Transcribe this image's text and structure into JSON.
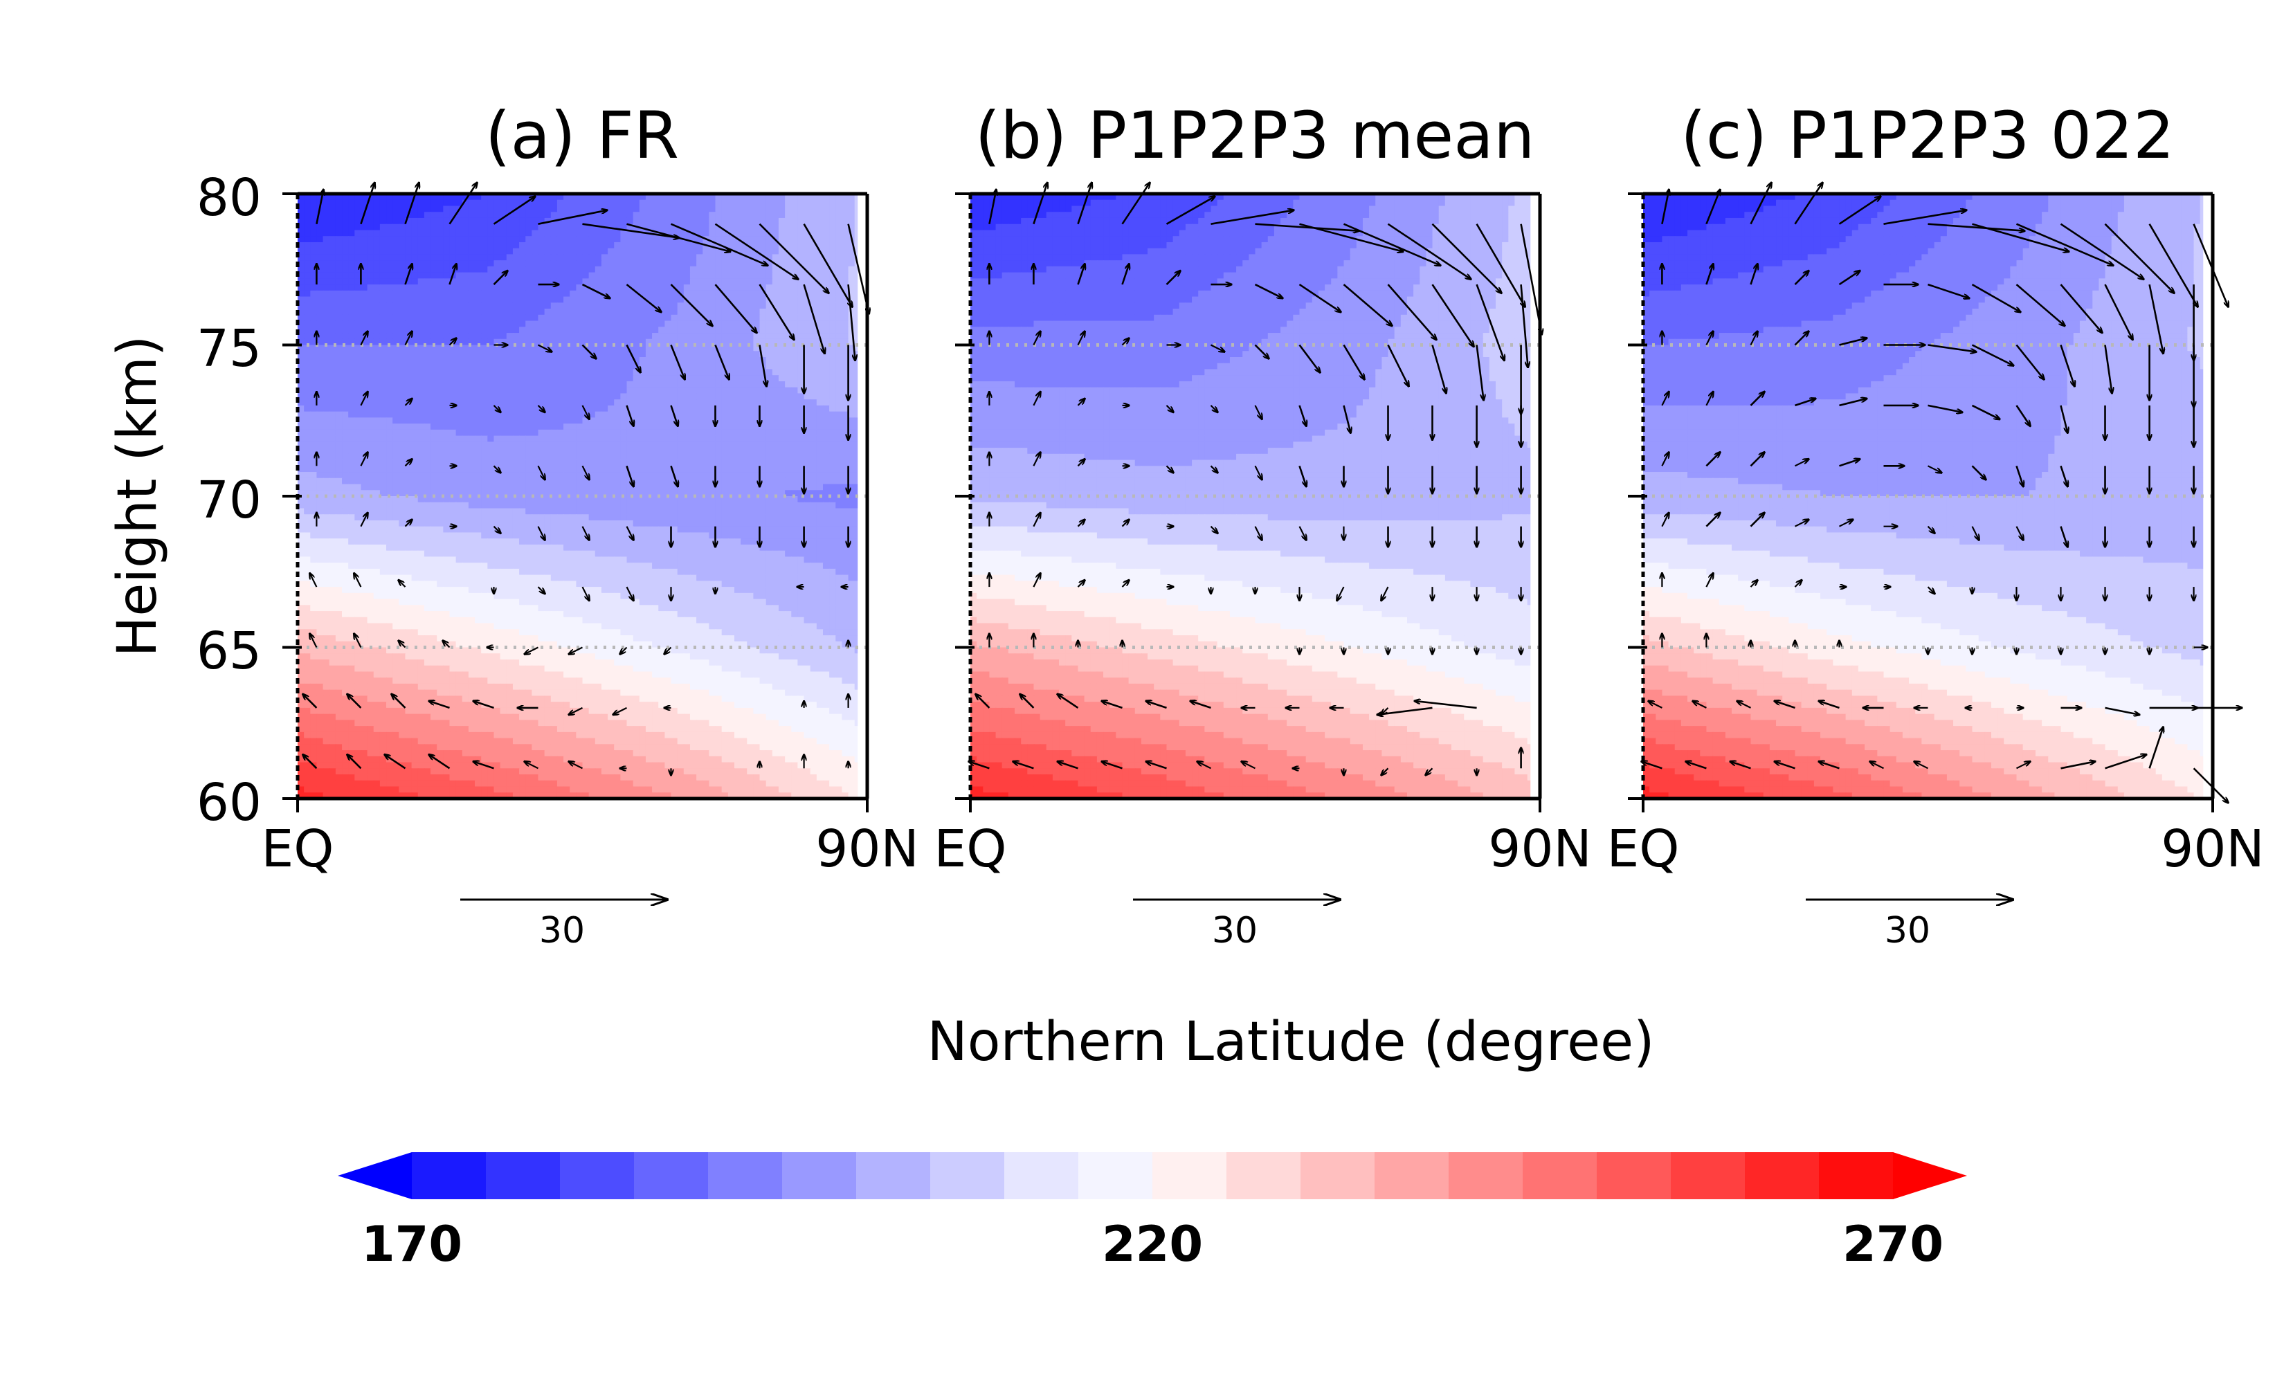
{
  "chart_data": [
    {
      "type": "heatmap",
      "title": "(a) FR",
      "x_ticks": [
        "EQ",
        "90N"
      ],
      "y_ticks": [
        "60",
        "65",
        "70",
        "75",
        "80"
      ],
      "ylabel": "Height (km)",
      "xlim": [
        0,
        90
      ],
      "ylim": [
        60,
        80
      ],
      "reference_vector": {
        "label": "30",
        "value": 30
      },
      "temperature_K": {
        "lat": [
          0,
          30,
          60,
          90
        ],
        "height": [
          60,
          65,
          70,
          75,
          80
        ],
        "values": [
          [
            262,
            252,
            240,
            224
          ],
          [
            234,
            224,
            214,
            204
          ],
          [
            202,
            198,
            196,
            194
          ],
          [
            190,
            190,
            196,
            206
          ],
          [
            175,
            180,
            192,
            206
          ]
        ]
      },
      "wind_vectors": {
        "lat": [
          3,
          10,
          17,
          24,
          31,
          38,
          45,
          52,
          59,
          66,
          73,
          80,
          87
        ],
        "height": [
          61,
          63,
          65,
          67,
          69,
          71,
          73,
          75,
          77,
          79
        ],
        "u": [
          [
            -2,
            -2,
            -3,
            -3,
            -3,
            -2,
            -2,
            -1,
            0,
            0,
            0,
            0,
            0
          ],
          [
            -2,
            -2,
            -2,
            -3,
            -3,
            -3,
            -2,
            -2,
            -1,
            0,
            0,
            0,
            0
          ],
          [
            -1,
            -1,
            -1,
            -1,
            -1,
            -2,
            -2,
            -1,
            -1,
            0,
            0,
            0,
            0
          ],
          [
            -1,
            -1,
            -1,
            0,
            0,
            1,
            1,
            1,
            0,
            0,
            0,
            -1,
            -1
          ],
          [
            0,
            1,
            1,
            1,
            1,
            1,
            1,
            1,
            0,
            0,
            0,
            0,
            0
          ],
          [
            0,
            1,
            1,
            1,
            1,
            1,
            1,
            1,
            1,
            0,
            0,
            0,
            0
          ],
          [
            0,
            1,
            1,
            1,
            1,
            1,
            1,
            1,
            1,
            0,
            0,
            0,
            0
          ],
          [
            0,
            1,
            1,
            1,
            2,
            2,
            2,
            2,
            2,
            2,
            1,
            0,
            0
          ],
          [
            0,
            0,
            1,
            1,
            2,
            3,
            4,
            5,
            6,
            6,
            5,
            3,
            1
          ],
          [
            1,
            2,
            2,
            4,
            6,
            10,
            14,
            15,
            14,
            12,
            10,
            7,
            3
          ]
        ],
        "w": [
          [
            2,
            2,
            2,
            2,
            1,
            1,
            1,
            0,
            -1,
            0,
            1,
            2,
            1
          ],
          [
            2,
            2,
            2,
            1,
            1,
            0,
            -1,
            -1,
            0,
            0,
            0,
            1,
            2
          ],
          [
            2,
            2,
            1,
            1,
            0,
            -1,
            -1,
            -1,
            -1,
            0,
            0,
            0,
            1
          ],
          [
            2,
            2,
            1,
            0,
            -1,
            -1,
            -2,
            -2,
            -2,
            -1,
            0,
            0,
            0
          ],
          [
            2,
            2,
            1,
            0,
            -1,
            -2,
            -2,
            -2,
            -3,
            -3,
            -3,
            -3,
            -3
          ],
          [
            2,
            2,
            1,
            0,
            -1,
            -2,
            -2,
            -3,
            -3,
            -3,
            -3,
            -4,
            -4
          ],
          [
            2,
            2,
            1,
            0,
            -1,
            -1,
            -2,
            -3,
            -3,
            -3,
            -3,
            -4,
            -5
          ],
          [
            2,
            2,
            2,
            1,
            0,
            -1,
            -2,
            -4,
            -5,
            -5,
            -6,
            -7,
            -8
          ],
          [
            3,
            3,
            3,
            3,
            2,
            0,
            -2,
            -4,
            -6,
            -7,
            -8,
            -10,
            -11
          ],
          [
            5,
            6,
            6,
            6,
            4,
            2,
            -2,
            -4,
            -6,
            -8,
            -10,
            -12,
            -13
          ]
        ]
      }
    },
    {
      "type": "heatmap",
      "title": "(b) P1P2P3 mean",
      "x_ticks": [
        "EQ",
        "90N"
      ],
      "y_ticks": [
        "60",
        "65",
        "70",
        "75",
        "80"
      ],
      "xlim": [
        0,
        90
      ],
      "ylim": [
        60,
        80
      ],
      "reference_vector": {
        "label": "30",
        "value": 30
      },
      "temperature_K": {
        "lat": [
          0,
          30,
          60,
          90
        ],
        "height": [
          60,
          65,
          70,
          75,
          80
        ],
        "values": [
          [
            262,
            254,
            244,
            232
          ],
          [
            236,
            228,
            220,
            212
          ],
          [
            204,
            202,
            202,
            204
          ],
          [
            192,
            192,
            198,
            208
          ],
          [
            176,
            181,
            193,
            207
          ]
        ]
      },
      "wind_vectors": {
        "lat": [
          3,
          10,
          17,
          24,
          31,
          38,
          45,
          52,
          59,
          66,
          73,
          80,
          87
        ],
        "height": [
          61,
          63,
          65,
          67,
          69,
          71,
          73,
          75,
          77,
          79
        ],
        "u": [
          [
            -3,
            -3,
            -3,
            -3,
            -3,
            -2,
            -2,
            -1,
            0,
            -1,
            -1,
            0,
            0
          ],
          [
            -2,
            -2,
            -3,
            -3,
            -3,
            -3,
            -2,
            -2,
            -2,
            -1,
            -8,
            -9,
            0
          ],
          [
            0,
            0,
            0,
            0,
            0,
            0,
            0,
            0,
            0,
            0,
            0,
            0,
            0
          ],
          [
            0,
            1,
            1,
            1,
            1,
            0,
            0,
            0,
            -1,
            -1,
            0,
            0,
            0
          ],
          [
            0,
            1,
            1,
            1,
            1,
            1,
            1,
            1,
            0,
            0,
            0,
            0,
            0
          ],
          [
            0,
            1,
            1,
            1,
            1,
            1,
            1,
            1,
            0,
            0,
            0,
            0,
            0
          ],
          [
            0,
            1,
            1,
            1,
            1,
            1,
            1,
            1,
            1,
            0,
            0,
            0,
            0
          ],
          [
            0,
            1,
            1,
            1,
            2,
            2,
            2,
            3,
            3,
            3,
            2,
            1,
            0
          ],
          [
            0,
            0,
            1,
            1,
            2,
            3,
            4,
            6,
            7,
            7,
            6,
            4,
            1
          ],
          [
            1,
            2,
            2,
            4,
            7,
            12,
            15,
            15,
            14,
            12,
            10,
            7,
            3
          ]
        ],
        "w": [
          [
            1,
            1,
            1,
            1,
            1,
            1,
            1,
            0,
            -1,
            -1,
            -1,
            -1,
            3
          ],
          [
            2,
            2,
            2,
            1,
            1,
            1,
            0,
            0,
            0,
            -1,
            -1,
            1,
            0
          ],
          [
            2,
            2,
            1,
            1,
            0,
            0,
            0,
            -1,
            -1,
            -1,
            -1,
            -1,
            -1
          ],
          [
            2,
            2,
            1,
            1,
            0,
            -1,
            -1,
            -2,
            -2,
            -2,
            -2,
            -2,
            -2
          ],
          [
            2,
            2,
            1,
            1,
            0,
            -1,
            -2,
            -2,
            -2,
            -3,
            -3,
            -3,
            -3
          ],
          [
            2,
            2,
            1,
            0,
            -1,
            -1,
            -2,
            -3,
            -3,
            -4,
            -4,
            -4,
            -4
          ],
          [
            2,
            2,
            1,
            0,
            -1,
            -1,
            -2,
            -3,
            -4,
            -5,
            -5,
            -6,
            -6
          ],
          [
            2,
            2,
            2,
            1,
            0,
            -1,
            -2,
            -4,
            -5,
            -6,
            -7,
            -8,
            -10
          ],
          [
            3,
            3,
            3,
            3,
            2,
            0,
            -2,
            -4,
            -6,
            -8,
            -9,
            -11,
            -12
          ],
          [
            5,
            6,
            6,
            6,
            4,
            2,
            -1,
            -4,
            -6,
            -8,
            -10,
            -12,
            -16
          ]
        ]
      }
    },
    {
      "type": "heatmap",
      "title": "(c) P1P2P3 022",
      "x_ticks": [
        "EQ",
        "90N"
      ],
      "y_ticks": [
        "60",
        "65",
        "70",
        "75",
        "80"
      ],
      "xlim": [
        0,
        90
      ],
      "ylim": [
        60,
        80
      ],
      "reference_vector": {
        "label": "30",
        "value": 30
      },
      "temperature_K": {
        "lat": [
          0,
          30,
          60,
          90
        ],
        "height": [
          60,
          65,
          70,
          75,
          80
        ],
        "values": [
          [
            262,
            252,
            238,
            224
          ],
          [
            232,
            222,
            214,
            208
          ],
          [
            202,
            200,
            200,
            202
          ],
          [
            190,
            192,
            198,
            206
          ],
          [
            175,
            181,
            193,
            206
          ]
        ]
      },
      "wind_vectors": {
        "lat": [
          3,
          10,
          17,
          24,
          31,
          38,
          45,
          52,
          59,
          66,
          73,
          80,
          87
        ],
        "height": [
          61,
          63,
          65,
          67,
          69,
          71,
          73,
          75,
          77,
          79
        ],
        "u": [
          [
            -3,
            -3,
            -3,
            -3,
            -3,
            -2,
            -2,
            0,
            2,
            5,
            6,
            2,
            5
          ],
          [
            -2,
            -2,
            -2,
            -3,
            -3,
            -3,
            -2,
            -1,
            1,
            3,
            5,
            7,
            7
          ],
          [
            0,
            0,
            0,
            0,
            0,
            0,
            0,
            0,
            0,
            0,
            0,
            0,
            2
          ],
          [
            0,
            1,
            1,
            1,
            1,
            1,
            1,
            0,
            0,
            0,
            0,
            0,
            0
          ],
          [
            1,
            2,
            2,
            2,
            2,
            2,
            1,
            1,
            1,
            1,
            0,
            0,
            0
          ],
          [
            1,
            2,
            2,
            2,
            3,
            3,
            2,
            2,
            1,
            1,
            0,
            0,
            0
          ],
          [
            1,
            1,
            2,
            3,
            4,
            5,
            5,
            4,
            2,
            1,
            0,
            0,
            0
          ],
          [
            0,
            1,
            1,
            2,
            4,
            6,
            7,
            6,
            4,
            2,
            1,
            0,
            0
          ],
          [
            0,
            1,
            1,
            2,
            3,
            5,
            6,
            7,
            7,
            6,
            4,
            2,
            0
          ],
          [
            1,
            2,
            3,
            4,
            6,
            12,
            14,
            14,
            14,
            12,
            10,
            7,
            5
          ]
        ],
        "w": [
          [
            1,
            1,
            1,
            1,
            1,
            1,
            1,
            0,
            1,
            1,
            2,
            6,
            -5
          ],
          [
            1,
            1,
            1,
            1,
            1,
            0,
            0,
            0,
            0,
            0,
            -1,
            0,
            0
          ],
          [
            2,
            2,
            1,
            1,
            1,
            0,
            -1,
            -1,
            -1,
            -1,
            -1,
            -1,
            0
          ],
          [
            2,
            2,
            1,
            1,
            0,
            0,
            -1,
            -1,
            -2,
            -2,
            -2,
            -2,
            -2
          ],
          [
            2,
            2,
            2,
            1,
            1,
            0,
            -1,
            -2,
            -2,
            -3,
            -3,
            -3,
            -3
          ],
          [
            2,
            2,
            2,
            1,
            1,
            0,
            -1,
            -2,
            -3,
            -3,
            -4,
            -4,
            -4
          ],
          [
            2,
            2,
            2,
            1,
            1,
            0,
            -1,
            -2,
            -3,
            -4,
            -5,
            -5,
            -6
          ],
          [
            2,
            2,
            2,
            2,
            1,
            0,
            -1,
            -3,
            -5,
            -6,
            -7,
            -8,
            -9
          ],
          [
            3,
            3,
            3,
            2,
            2,
            0,
            -2,
            -4,
            -6,
            -7,
            -8,
            -10,
            -11
          ],
          [
            5,
            5,
            6,
            6,
            4,
            2,
            -1,
            -4,
            -6,
            -8,
            -10,
            -12,
            -12
          ]
        ]
      }
    }
  ],
  "xlabel": "Northern Latitude (degree)",
  "colorbar": {
    "min": 170,
    "max": 270,
    "step": 5,
    "labels": [
      "170",
      "220",
      "270"
    ],
    "colors": [
      "#0000ff",
      "#1a1aff",
      "#3333ff",
      "#4d4dff",
      "#6666ff",
      "#8080ff",
      "#9999ff",
      "#b3b3ff",
      "#ccccff",
      "#e6e6ff",
      "#f4f4ff",
      "#fff0f0",
      "#ffd9d9",
      "#ffbfbf",
      "#ffa6a6",
      "#ff8c8c",
      "#ff7373",
      "#ff5959",
      "#ff4040",
      "#ff2626",
      "#ff0d0d",
      "#ff0000"
    ]
  }
}
